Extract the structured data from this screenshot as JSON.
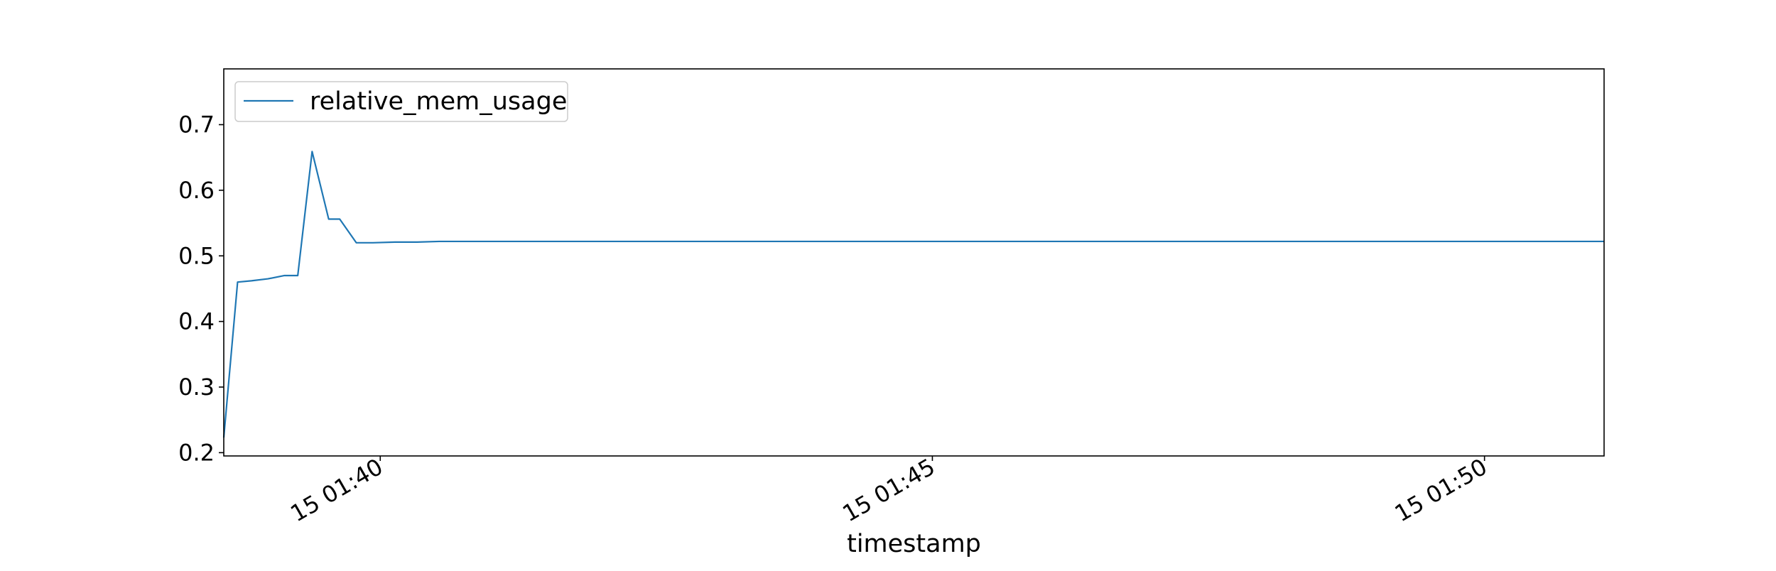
{
  "chart_data": {
    "type": "line",
    "title": "",
    "xlabel": "timestamp",
    "ylabel": "",
    "x_unit": "minutes",
    "x_tick_values": [
      39.667,
      44.667,
      49.667
    ],
    "x_tick_labels": [
      "15 01:40",
      "15 01:45",
      "15 01:50"
    ],
    "xlim": [
      38.25,
      50.75
    ],
    "y_ticks": [
      0.2,
      0.3,
      0.4,
      0.5,
      0.6,
      0.7
    ],
    "ylim": [
      0.195,
      0.785
    ],
    "grid": false,
    "legend_position": "upper-left",
    "colors": {
      "series": "#1f77b4",
      "axes": "#000000",
      "legend_border": "#cccccc",
      "background": "#ffffff"
    },
    "series": [
      {
        "name": "relative_mem_usage",
        "x": [
          38.25,
          38.375,
          38.5,
          38.65,
          38.8,
          38.92,
          39.05,
          39.2,
          39.3,
          39.45,
          39.6,
          39.8,
          40.0,
          40.2,
          40.4,
          40.6,
          40.8,
          41.0,
          41.5,
          42.0,
          42.5,
          43.0,
          43.5,
          43.6,
          43.7,
          43.9,
          44.12,
          44.25,
          44.38,
          44.52,
          44.67,
          45.0,
          45.5,
          46.0,
          46.5,
          47.0,
          47.5,
          48.0,
          48.5,
          48.9,
          49.3,
          49.42,
          49.55,
          49.68,
          49.8,
          49.93,
          50.2,
          50.5,
          50.75
        ],
        "y": [
          0.223,
          0.46,
          0.462,
          0.465,
          0.47,
          0.47,
          0.659,
          0.556,
          0.556,
          0.52,
          0.52,
          0.521,
          0.521,
          0.522,
          0.522,
          0.522,
          0.522,
          0.522,
          0.522,
          0.522,
          0.522,
          0.522,
          0.522,
          0.522,
          0.522,
          0.522,
          0.522,
          0.522,
          0.522,
          0.522,
          0.522,
          0.522,
          0.522,
          0.522,
          0.522,
          0.522,
          0.522,
          0.522,
          0.522,
          0.522,
          0.522,
          0.522,
          0.522,
          0.522,
          0.522,
          0.522,
          0.522,
          0.522,
          0.522
        ]
      }
    ]
  }
}
